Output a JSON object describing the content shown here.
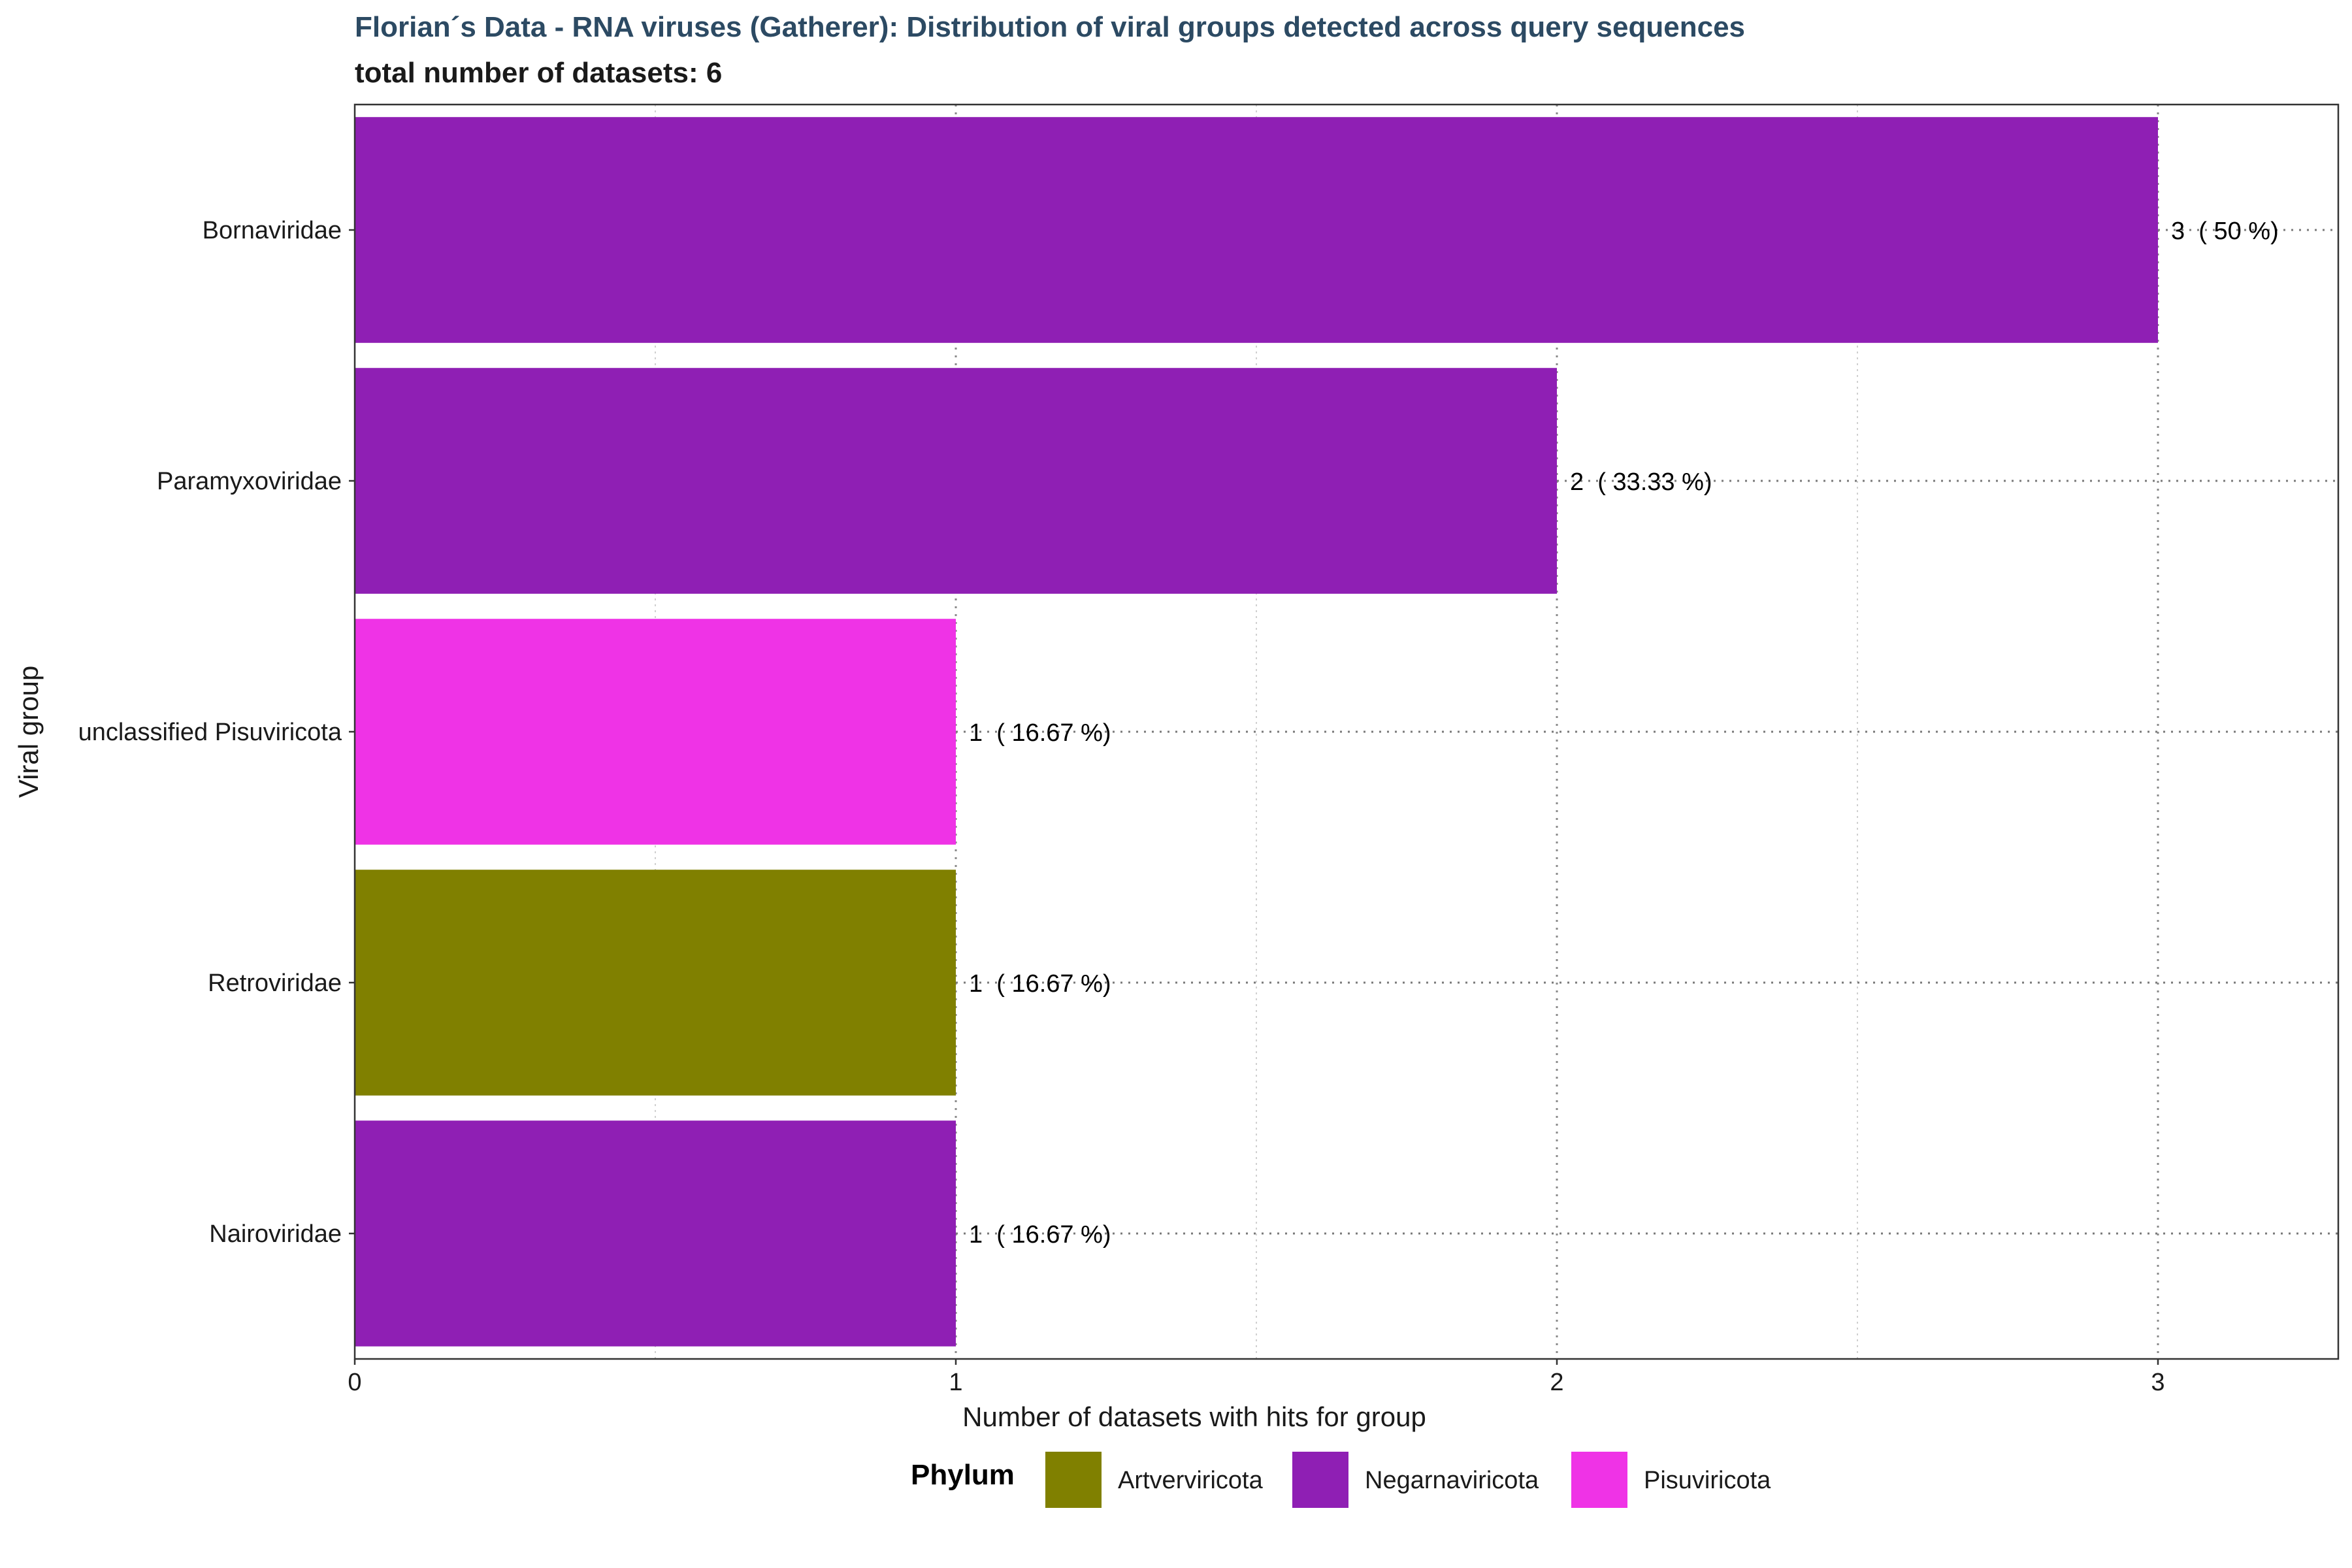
{
  "chart_data": {
    "type": "bar",
    "orientation": "horizontal",
    "title": "Florian´s Data - RNA viruses (Gatherer): Distribution of viral groups detected across query sequences",
    "subtitle": "total number of datasets: 6",
    "xlabel": "Number of datasets with hits for group",
    "ylabel": "Viral group",
    "xlim": [
      0,
      3.3
    ],
    "x_ticks": [
      "0",
      "1",
      "2",
      "3"
    ],
    "grid": "vertical dotted",
    "legend": {
      "title": "Phylum",
      "placement": "bottom",
      "entries": [
        {
          "name": "Artverviricota",
          "color": "#808000"
        },
        {
          "name": "Negarnaviricota",
          "color": "#8f1fb4"
        },
        {
          "name": "Pisuviricota",
          "color": "#ef33e6"
        }
      ]
    },
    "categories": [
      "Bornaviridae",
      "Paramyxoviridae",
      "unclassified Pisuviricota",
      "Retroviridae",
      "Nairoviridae"
    ],
    "values": [
      3,
      2,
      1,
      1,
      1
    ],
    "phylum": [
      "Negarnaviricota",
      "Negarnaviricota",
      "Pisuviricota",
      "Artverviricota",
      "Negarnaviricota"
    ],
    "data_labels": [
      "3  ( 50 %)",
      "2  ( 33.33 %)",
      "1  ( 16.67 %)",
      "1  ( 16.67 %)",
      "1  ( 16.67 %)"
    ]
  }
}
